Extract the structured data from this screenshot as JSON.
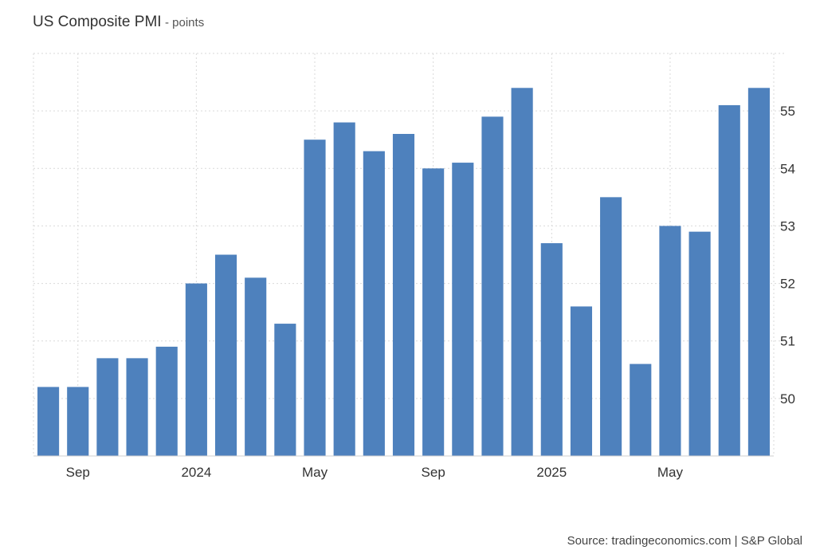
{
  "header": {
    "title": "US Composite PMI",
    "subtitle": "- points"
  },
  "source": "Source: tradingeconomics.com | S&P Global",
  "colors": {
    "bar": "#4e81bd",
    "grid": "#d9d9d9",
    "axis_text": "#333333"
  },
  "chart_data": {
    "type": "bar",
    "title": "US Composite PMI",
    "subtitle": "- points",
    "xlabel": "",
    "ylabel": "",
    "categories": [
      "2023-08",
      "2023-09",
      "2023-10",
      "2023-11",
      "2023-12",
      "2024-01",
      "2024-02",
      "2024-03",
      "2024-04",
      "2024-05",
      "2024-06",
      "2024-07",
      "2024-08",
      "2024-09",
      "2024-10",
      "2024-11",
      "2024-12",
      "2025-01",
      "2025-02",
      "2025-03",
      "2025-04",
      "2025-05",
      "2025-06",
      "2025-07",
      "2025-08"
    ],
    "values": [
      50.2,
      50.2,
      50.7,
      50.7,
      50.9,
      52.0,
      52.5,
      52.1,
      51.3,
      54.5,
      54.8,
      54.3,
      54.6,
      54.0,
      54.1,
      54.9,
      55.4,
      52.7,
      51.6,
      53.5,
      50.6,
      53.0,
      52.9,
      55.1,
      55.4
    ],
    "ylim": [
      49.0,
      56.0
    ],
    "yticks": [
      50,
      51,
      52,
      53,
      54,
      55
    ],
    "xtick_labels": [
      {
        "label": "Sep",
        "index": 1
      },
      {
        "label": "2024",
        "index": 5
      },
      {
        "label": "May",
        "index": 9
      },
      {
        "label": "Sep",
        "index": 13
      },
      {
        "label": "2025",
        "index": 17
      },
      {
        "label": "May",
        "index": 21
      }
    ],
    "grid": true,
    "y_axis_side": "right",
    "legend": "none"
  }
}
